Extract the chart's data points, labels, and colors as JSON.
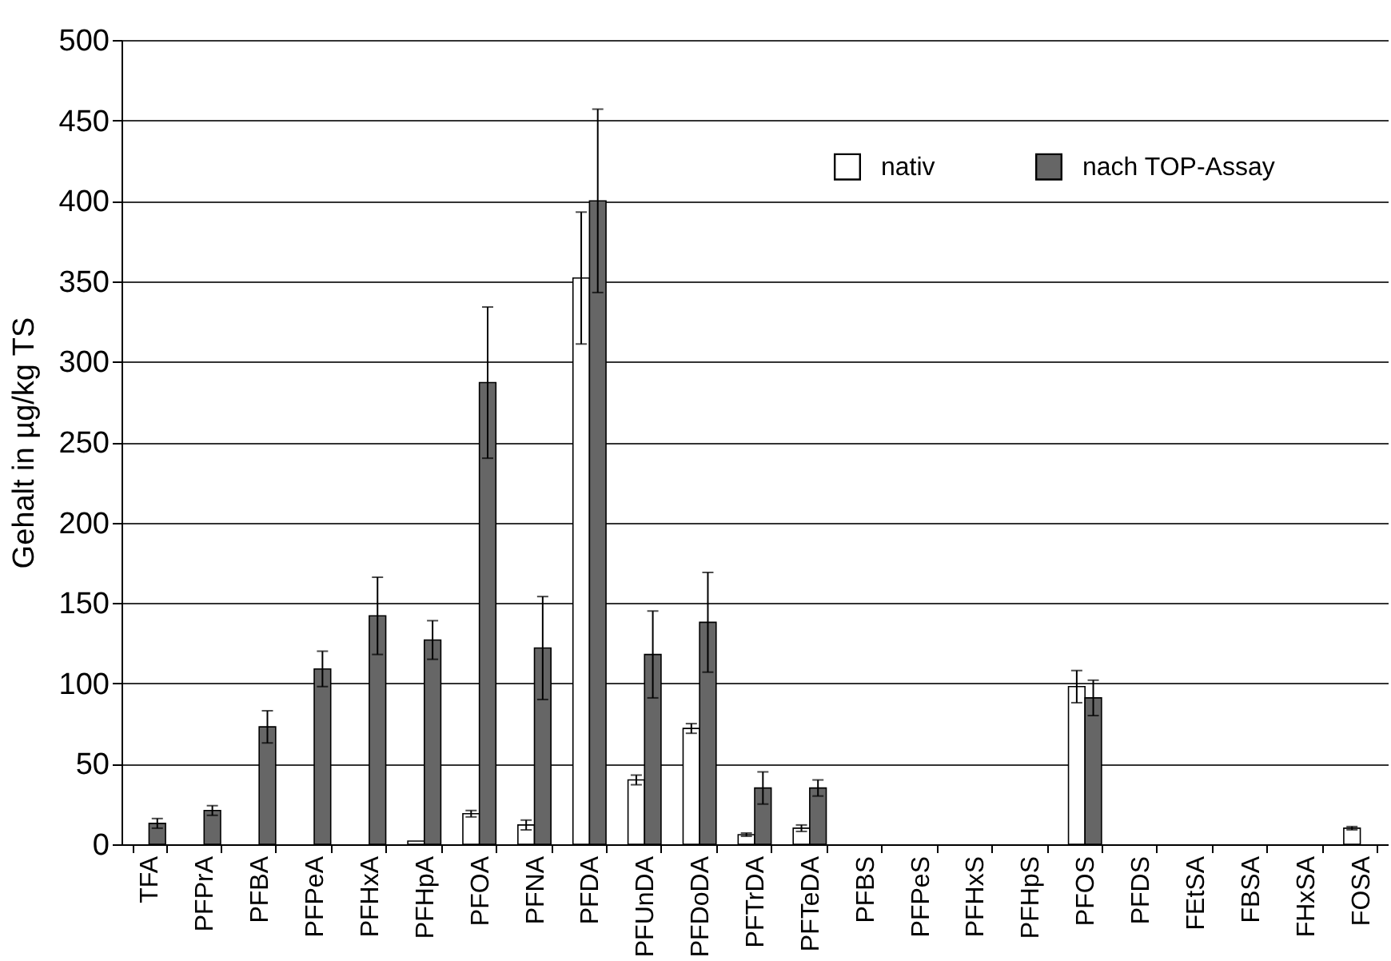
{
  "chart_data": {
    "type": "bar",
    "ylabel": "Gehalt in µg/kg TS",
    "categories": [
      "TFA",
      "PFPrA",
      "PFBA",
      "PFPeA",
      "PFHxA",
      "PFHpA",
      "PFOA",
      "PFNA",
      "PFDA",
      "PFUnDA",
      "PFDoDA",
      "PFTrDA",
      "PFTeDA",
      "PFBS",
      "PFPeS",
      "PFHxS",
      "PFHpS",
      "PFOS",
      "PFDS",
      "FEtSA",
      "FBSA",
      "FHxSA",
      "FOSA"
    ],
    "series": [
      {
        "name": "nativ",
        "color": "#ffffff",
        "values": [
          null,
          null,
          null,
          null,
          null,
          2,
          19,
          12,
          352,
          40,
          72,
          6,
          10,
          null,
          null,
          null,
          null,
          98,
          null,
          null,
          null,
          null,
          10
        ],
        "errors": [
          null,
          null,
          null,
          null,
          null,
          null,
          2,
          3,
          41,
          3,
          3,
          1,
          2,
          null,
          null,
          null,
          null,
          10,
          null,
          null,
          null,
          null,
          1
        ]
      },
      {
        "name": "nach TOP-Assay",
        "color": "#666666",
        "values": [
          13,
          21,
          73,
          109,
          142,
          127,
          287,
          122,
          400,
          118,
          138,
          35,
          35,
          null,
          null,
          null,
          null,
          91,
          null,
          null,
          null,
          null,
          null
        ],
        "errors": [
          3,
          3,
          10,
          11,
          24,
          12,
          47,
          32,
          57,
          27,
          31,
          10,
          5,
          null,
          null,
          null,
          null,
          11,
          null,
          null,
          null,
          null,
          null
        ]
      }
    ],
    "ylim": [
      0,
      500
    ],
    "yticks": [
      0,
      50,
      100,
      150,
      200,
      250,
      300,
      350,
      400,
      450,
      500
    ],
    "grid": "y",
    "legend": "top right"
  }
}
